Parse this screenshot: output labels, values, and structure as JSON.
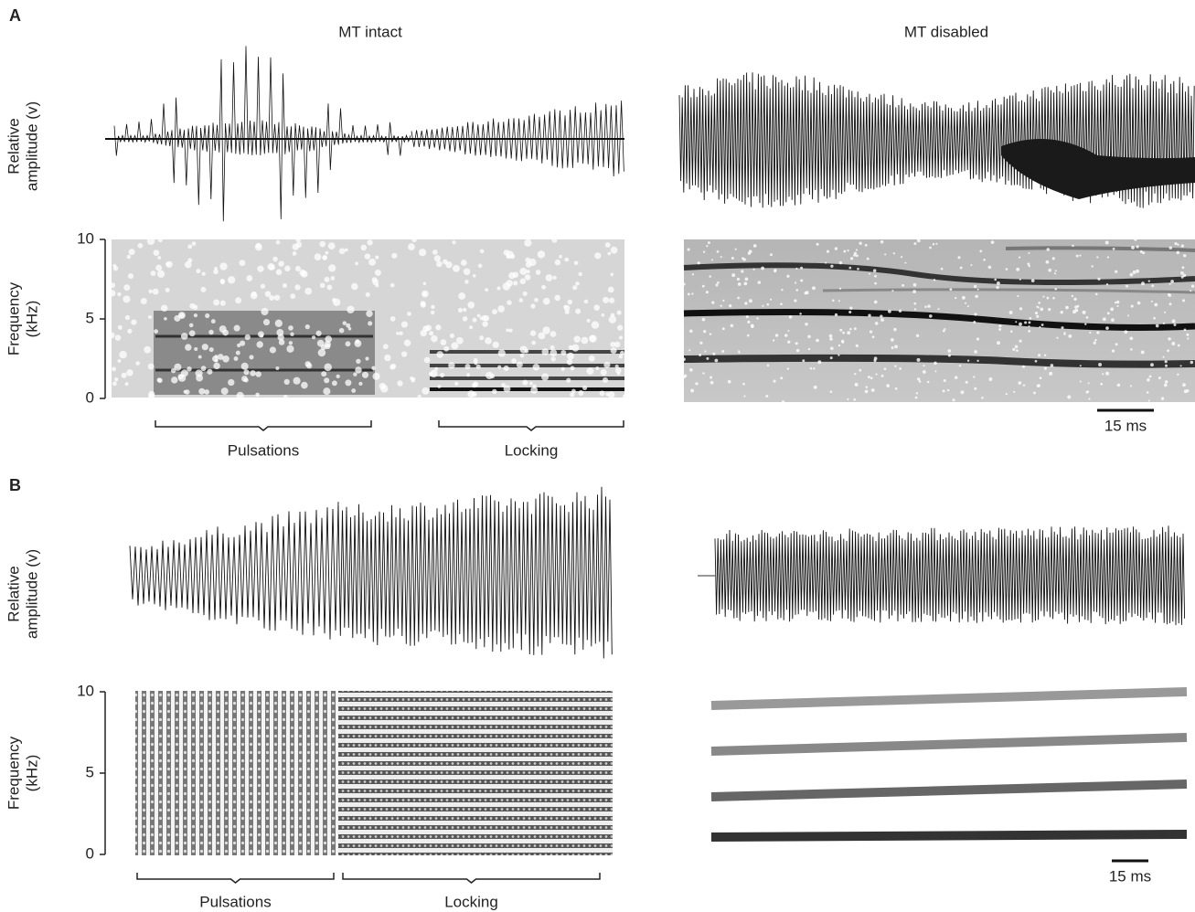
{
  "columns": [
    "MT intact",
    "MT disabled"
  ],
  "panels": [
    {
      "label": "A",
      "amplitude_label": [
        "Relative",
        "amplitude (v)"
      ],
      "frequency_label": [
        "Frequency",
        "(kHz)"
      ],
      "ylim": [
        0,
        10
      ],
      "yticks": [
        0,
        5,
        10
      ],
      "brackets": [
        "Pulsations",
        "Locking"
      ],
      "scale_bar": "15 ms"
    },
    {
      "label": "B",
      "amplitude_label": [
        "Relative",
        "amplitude (v)"
      ],
      "frequency_label": [
        "Frequency",
        "(kHz)"
      ],
      "ylim": [
        0,
        10
      ],
      "yticks": [
        0,
        5,
        10
      ],
      "brackets": [
        "Pulsations",
        "Locking"
      ],
      "scale_bar": "15 ms"
    }
  ]
}
